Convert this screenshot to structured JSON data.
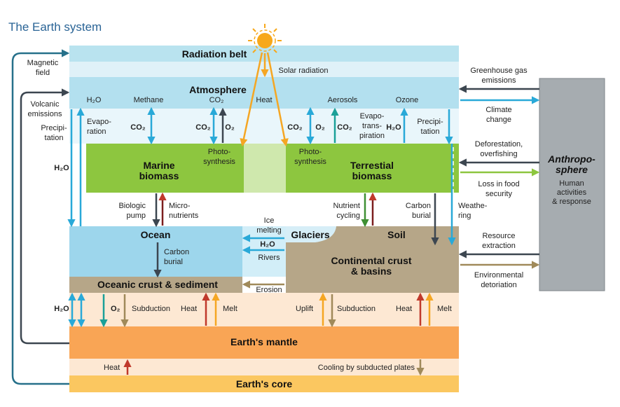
{
  "title": "The Earth system",
  "boxes": {
    "radiation_belt": "Radiation belt",
    "atmosphere": "Atmosphere",
    "marine_biomass": [
      "Marine",
      "biomass"
    ],
    "terrestial_biomass": [
      "Terrestial",
      "biomass"
    ],
    "ocean": "Ocean",
    "glaciers": "Glaciers",
    "soil": "Soil",
    "continental_crust": [
      "Continental crust",
      "& basins"
    ],
    "oceanic_crust": "Oceanic crust & sediment",
    "mantle": "Earth's mantle",
    "core": "Earth's core",
    "anthroposphere": [
      "Anthropo-",
      "sphere"
    ],
    "anthroposphere_sub": [
      "Human",
      "activities",
      "& response"
    ]
  },
  "labels": {
    "solar_radiation": "Solar radiation",
    "h2o": "H₂O",
    "methane": "Methane",
    "co2": "CO₂",
    "heat": "Heat",
    "aerosols": "Aerosols",
    "ozone": "Ozone",
    "magnetic_field": [
      "Magnetic",
      "field"
    ],
    "volcanic_emissions": [
      "Volcanic",
      "emissions"
    ],
    "precipitation_left": [
      "Precipi-",
      "tation"
    ],
    "h2o_left": "H₂O",
    "evaporation": [
      "Evapo-",
      "ration"
    ],
    "co2_b": "CO₂",
    "o2": "O₂",
    "photosynthesis": [
      "Photo-",
      "synthesis"
    ],
    "evapotranspiration": [
      "Evapo-",
      "trans-",
      "piration"
    ],
    "h2o_b": "H₂O",
    "precipitation_right": [
      "Precipi-",
      "tation"
    ],
    "biologic_pump": [
      "Biologic",
      "pump"
    ],
    "micronutrients": [
      "Micro-",
      "nutrients"
    ],
    "ice_melting": [
      "Ice",
      "melting"
    ],
    "rivers": "Rivers",
    "nutrient_cycling": [
      "Nutrient",
      "cycling"
    ],
    "carbon_burial": [
      "Carbon",
      "burial"
    ],
    "weathering": [
      "Weathe-",
      "ring"
    ],
    "carbon_burial_ocean": [
      "Carbon",
      "burial"
    ],
    "erosion": "Erosion",
    "subduction": "Subduction",
    "melt": "Melt",
    "uplift": "Uplift",
    "cooling": "Cooling by subducted plates",
    "greenhouse": [
      "Greenhouse gas",
      "emissions"
    ],
    "climate_change": [
      "Climate",
      "change"
    ],
    "deforestation": [
      "Deforestation,",
      "overfishing"
    ],
    "food_security": [
      "Loss in food",
      "security"
    ],
    "resource_extraction": [
      "Resource",
      "extraction"
    ],
    "environmental": [
      "Environmental",
      "detoriation"
    ]
  },
  "colors": {
    "title": "#2a6496",
    "radiation_belt": "#b9e3ef",
    "radiation_band": "#dff1f8",
    "atmosphere": "#b3e0ef",
    "biomass": "#8dc63f",
    "biomass_gap": "#cfe8ad",
    "ocean": "#9dd6ec",
    "river_band": "#d2eef8",
    "crust": "#b6a688",
    "mantle": "#f9a555",
    "mantle_band": "#fde8d3",
    "core": "#fbc760",
    "anthro": "#a6acb0",
    "blue_arrow": "#29a9d8",
    "dark_arrow": "#3c4650",
    "teal_arrow": "#1aa098",
    "green_arrow": "#3f8f33",
    "red_arrow": "#c0392b",
    "orange_arrow": "#f5a623",
    "brown_arrow": "#a08a5a",
    "sun": "#f7a81b"
  }
}
